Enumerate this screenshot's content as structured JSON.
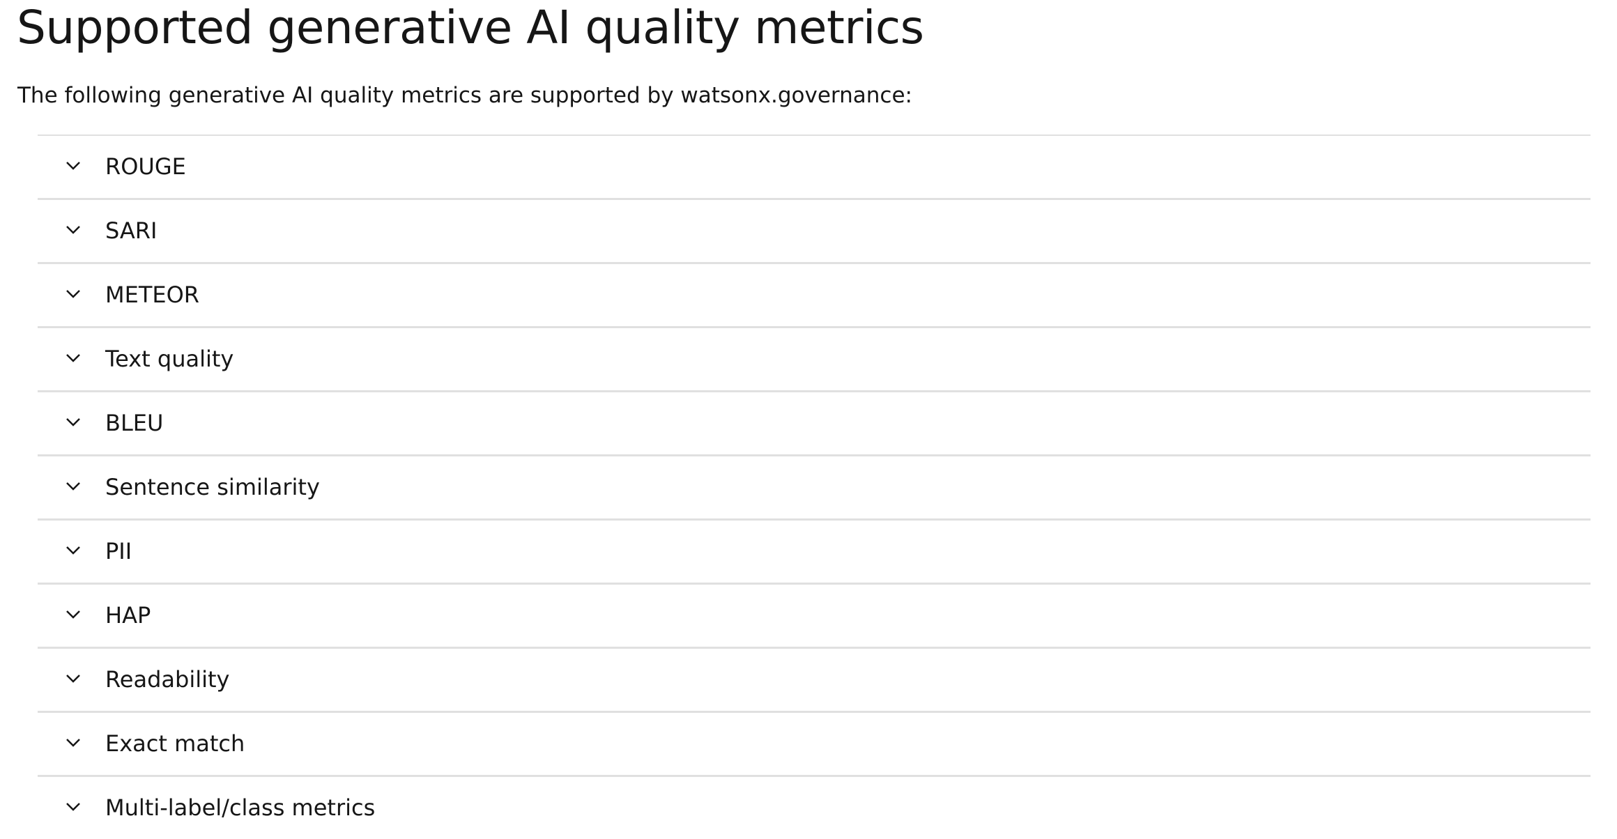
{
  "page": {
    "title": "Supported generative AI quality metrics",
    "intro": "The following generative AI quality metrics are supported by  watsonx.governance:"
  },
  "accordion": {
    "icon": "chevron-down-icon",
    "items": [
      {
        "label": "ROUGE"
      },
      {
        "label": "SARI"
      },
      {
        "label": "METEOR"
      },
      {
        "label": "Text quality"
      },
      {
        "label": "BLEU"
      },
      {
        "label": "Sentence similarity"
      },
      {
        "label": "PII"
      },
      {
        "label": "HAP"
      },
      {
        "label": "Readability"
      },
      {
        "label": "Exact match"
      },
      {
        "label": "Multi-label/class metrics"
      }
    ]
  },
  "colors": {
    "text": "#161616",
    "divider": "#e0e0e0",
    "background": "#ffffff"
  }
}
